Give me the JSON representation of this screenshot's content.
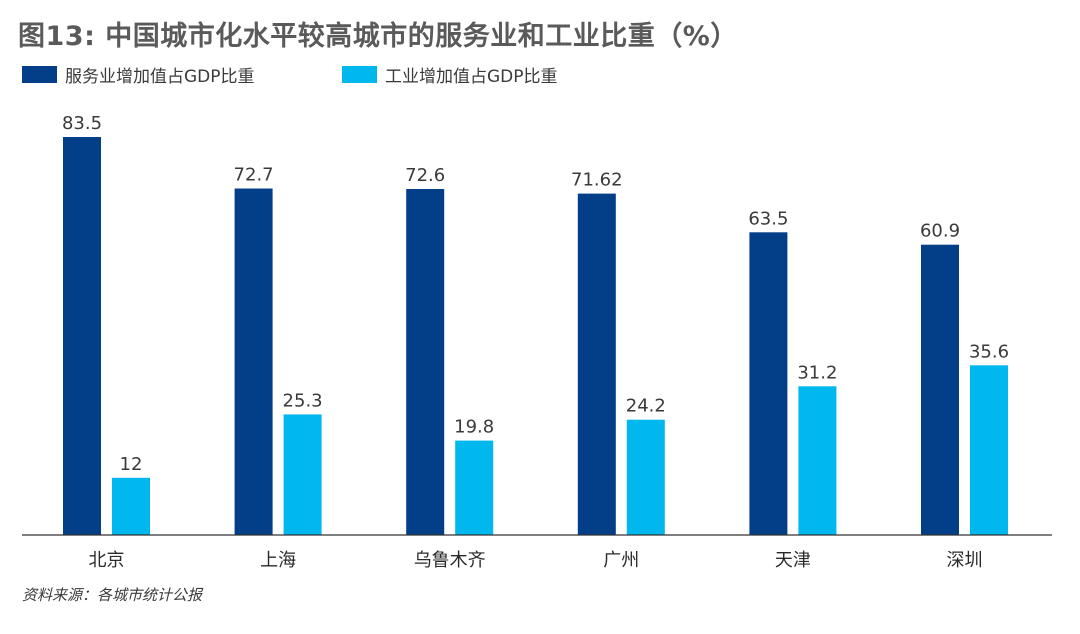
{
  "title": "图13: 中国城市化水平较高城市的服务业和工业比重（%）",
  "source": "资料来源：各城市统计公报",
  "colors": {
    "services": "#023f88",
    "industry": "#00b8ee",
    "axis": "#333333"
  },
  "chart_data": {
    "type": "bar",
    "title": "图13: 中国城市化水平较高城市的服务业和工业比重（%）",
    "categories": [
      "北京",
      "上海",
      "乌鲁木齐",
      "广州",
      "天津",
      "深圳"
    ],
    "series": [
      {
        "name": "服务业增加值占GDP比重",
        "color": "#023f88",
        "values": [
          83.5,
          72.7,
          72.6,
          71.62,
          63.5,
          60.9
        ],
        "labels": [
          "83.5",
          "72.7",
          "72.6",
          "71.62",
          "63.5",
          "60.9"
        ]
      },
      {
        "name": "工业增加值占GDP比重",
        "color": "#00b8ee",
        "values": [
          12,
          25.3,
          19.8,
          24.2,
          31.2,
          35.6
        ],
        "labels": [
          "12",
          "25.3",
          "19.8",
          "24.2",
          "31.2",
          "35.6"
        ]
      }
    ],
    "xlabel": "",
    "ylabel": "",
    "ylim": [
      0,
      83.5
    ],
    "grid": false,
    "legend_position": "top-left"
  }
}
